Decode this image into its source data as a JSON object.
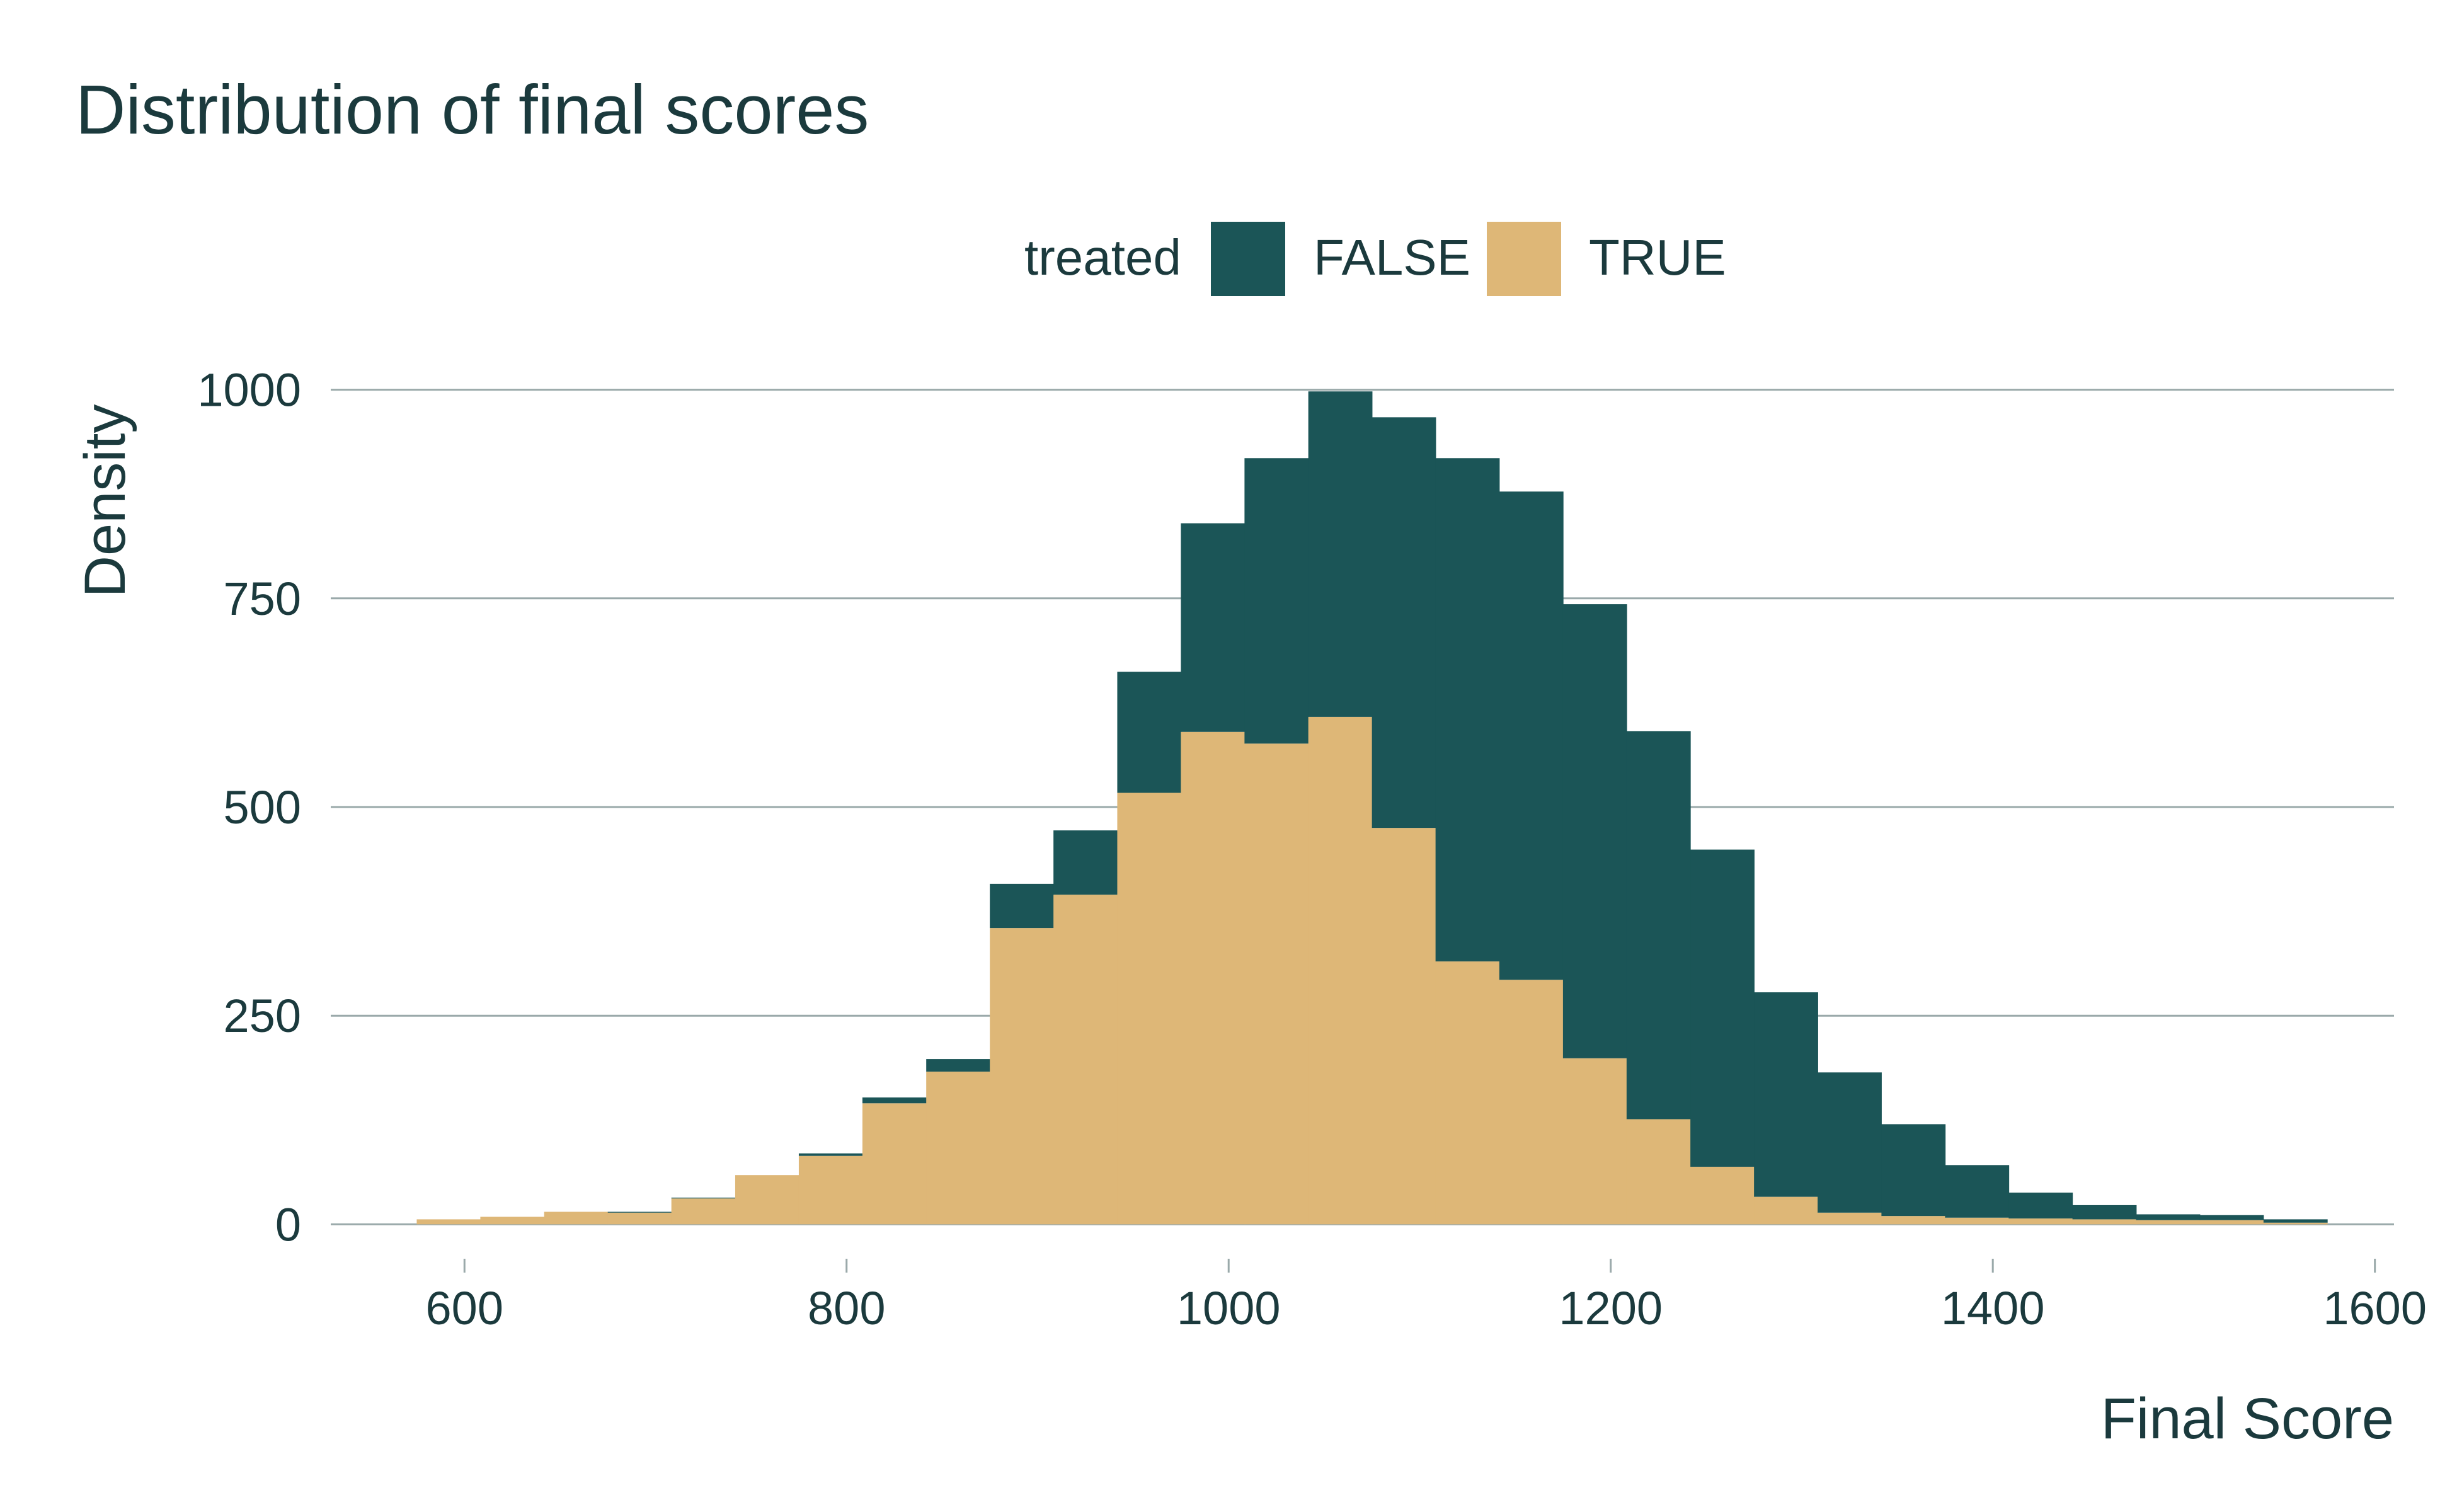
{
  "chart_data": {
    "type": "bar",
    "subtype": "stacked-histogram",
    "title": "Distribution of final scores",
    "xlabel": "Final Score",
    "ylabel": "Density",
    "legend": {
      "title": "treated",
      "placement": "top-center",
      "entries": [
        {
          "name": "FALSE",
          "color": "#1b5557"
        },
        {
          "name": "TRUE",
          "color": "#deb777"
        }
      ]
    },
    "xlim": [
      530,
      1610
    ],
    "ylim": [
      -5,
      1005
    ],
    "x_ticks": [
      600,
      800,
      1000,
      1200,
      1400,
      1600
    ],
    "y_ticks": [
      0,
      250,
      500,
      750,
      1000
    ],
    "grid": "horizontal",
    "bin_width": 33.3,
    "bin_starts": [
      575,
      608.3,
      641.7,
      675,
      708.3,
      741.7,
      775,
      808.3,
      841.7,
      875,
      908.3,
      941.7,
      975,
      1008.3,
      1041.7,
      1075,
      1108.3,
      1141.7,
      1175,
      1208.3,
      1241.7,
      1275,
      1308.3,
      1341.7,
      1375,
      1408.3,
      1441.7,
      1475,
      1508.3,
      1541.7
    ],
    "series": [
      {
        "name": "FALSE",
        "values": [
          0,
          0,
          0,
          1,
          1,
          0,
          3,
          7,
          15,
          53,
          77,
          145,
          250,
          342,
          390,
          492,
          603,
          585,
          544,
          465,
          380,
          245,
          168,
          110,
          63,
          31,
          17,
          7,
          6,
          4
        ]
      },
      {
        "name": "TRUE",
        "values": [
          6,
          9,
          15,
          14,
          31,
          59,
          82,
          145,
          183,
          355,
          395,
          517,
          590,
          576,
          608,
          475,
          315,
          293,
          199,
          126,
          69,
          33,
          14,
          10,
          8,
          7,
          6,
          5,
          5,
          2
        ]
      }
    ]
  }
}
